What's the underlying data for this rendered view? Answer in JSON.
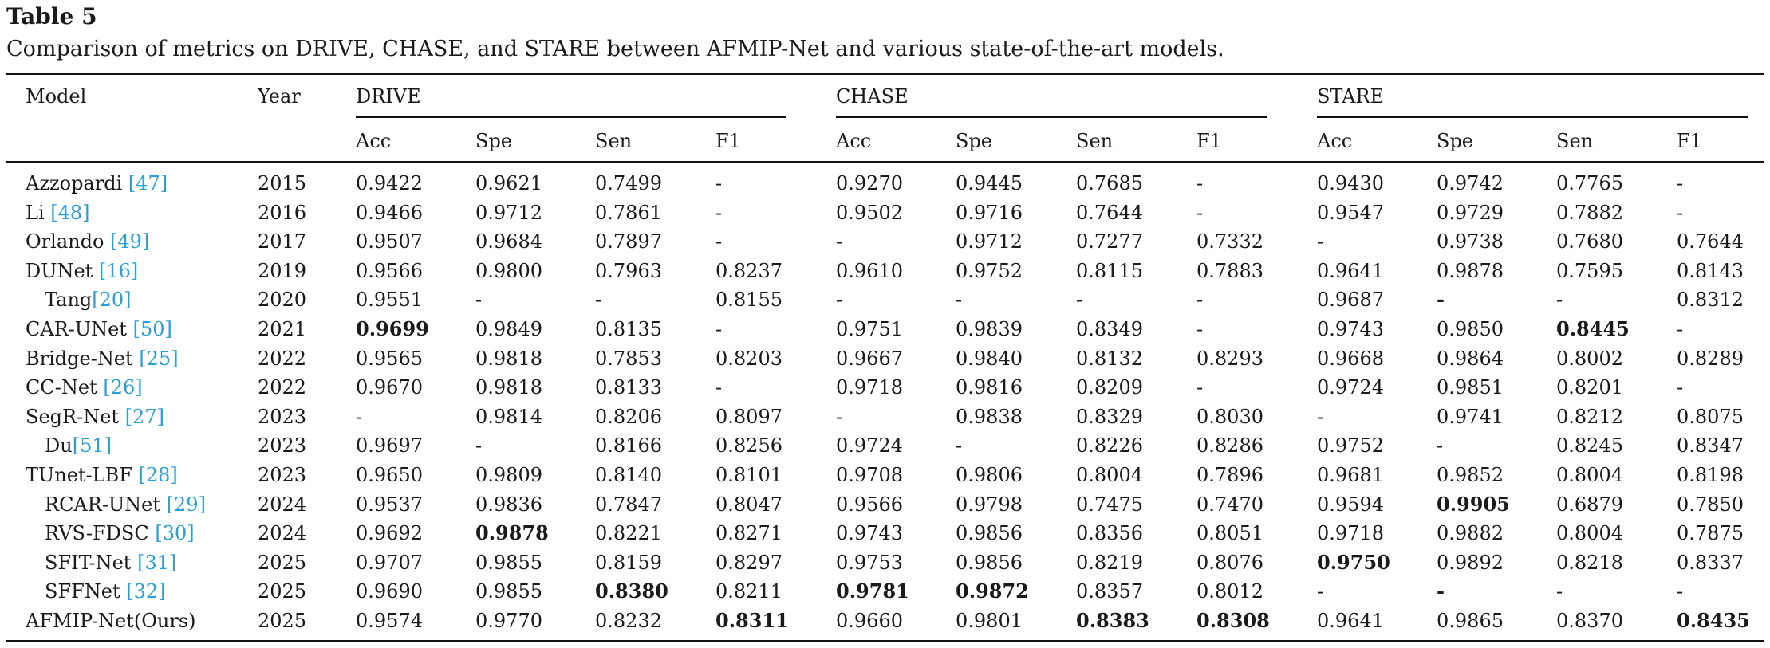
{
  "caption": {
    "label": "Table 5",
    "text": "Comparison of metrics on DRIVE, CHASE, and STARE between AFMIP-Net and various state-of-the-art models."
  },
  "colors": {
    "reference": "#2a9fd6",
    "text": "#1a1a1a"
  },
  "header": {
    "model": "Model",
    "year": "Year",
    "groups": [
      "DRIVE",
      "CHASE",
      "STARE"
    ],
    "metrics": [
      "Acc",
      "Spe",
      "Sen",
      "F1"
    ]
  },
  "rows": [
    {
      "name": "Azzopardi",
      "ref": "[47]",
      "year": "2015",
      "values": [
        "0.9422",
        "0.9621",
        "0.7499",
        "-",
        "0.9270",
        "0.9445",
        "0.7685",
        "-",
        "0.9430",
        "0.9742",
        "0.7765",
        "-"
      ],
      "bold": []
    },
    {
      "name": "Li",
      "ref": "[48]",
      "year": "2016",
      "values": [
        "0.9466",
        "0.9712",
        "0.7861",
        "-",
        "0.9502",
        "0.9716",
        "0.7644",
        "-",
        "0.9547",
        "0.9729",
        "0.7882",
        "-"
      ],
      "bold": []
    },
    {
      "name": "Orlando",
      "ref": "[49]",
      "year": "2017",
      "values": [
        "0.9507",
        "0.9684",
        "0.7897",
        "-",
        "-",
        "0.9712",
        "0.7277",
        "0.7332",
        "-",
        "0.9738",
        "0.7680",
        "0.7644"
      ],
      "bold": []
    },
    {
      "name": "DUNet",
      "ref": "[16]",
      "year": "2019",
      "values": [
        "0.9566",
        "0.9800",
        "0.7963",
        "0.8237",
        "0.9610",
        "0.9752",
        "0.8115",
        "0.7883",
        "0.9641",
        "0.9878",
        "0.7595",
        "0.8143"
      ],
      "bold": []
    },
    {
      "name": "Tang",
      "ref": "[20]",
      "year": "2020",
      "indent": true,
      "nospace": true,
      "values": [
        "0.9551",
        "-",
        "-",
        "0.8155",
        "-",
        "-",
        "-",
        "-",
        "0.9687",
        "-",
        "-",
        "0.8312"
      ],
      "bold": [
        9
      ]
    },
    {
      "name": "CAR-UNet",
      "ref": "[50]",
      "year": "2021",
      "values": [
        "0.9699",
        "0.9849",
        "0.8135",
        "-",
        "0.9751",
        "0.9839",
        "0.8349",
        "-",
        "0.9743",
        "0.9850",
        "0.8445",
        "-"
      ],
      "bold": [
        0,
        10
      ]
    },
    {
      "name": "Bridge-Net",
      "ref": "[25]",
      "year": "2022",
      "values": [
        "0.9565",
        "0.9818",
        "0.7853",
        "0.8203",
        "0.9667",
        "0.9840",
        "0.8132",
        "0.8293",
        "0.9668",
        "0.9864",
        "0.8002",
        "0.8289"
      ],
      "bold": []
    },
    {
      "name": "CC-Net",
      "ref": "[26]",
      "year": "2022",
      "values": [
        "0.9670",
        "0.9818",
        "0.8133",
        "-",
        "0.9718",
        "0.9816",
        "0.8209",
        "-",
        "0.9724",
        "0.9851",
        "0.8201",
        "-"
      ],
      "bold": []
    },
    {
      "name": "SegR-Net",
      "ref": "[27]",
      "year": "2023",
      "values": [
        "-",
        "0.9814",
        "0.8206",
        "0.8097",
        "-",
        "0.9838",
        "0.8329",
        "0.8030",
        "-",
        "0.9741",
        "0.8212",
        "0.8075"
      ],
      "bold": []
    },
    {
      "name": "Du",
      "ref": "[51]",
      "year": "2023",
      "indent": true,
      "nospace": true,
      "values": [
        "0.9697",
        "-",
        "0.8166",
        "0.8256",
        "0.9724",
        "-",
        "0.8226",
        "0.8286",
        "0.9752",
        "-",
        "0.8245",
        "0.8347"
      ],
      "bold": []
    },
    {
      "name": "TUnet-LBF",
      "ref": "[28]",
      "year": "2023",
      "values": [
        "0.9650",
        "0.9809",
        "0.8140",
        "0.8101",
        "0.9708",
        "0.9806",
        "0.8004",
        "0.7896",
        "0.9681",
        "0.9852",
        "0.8004",
        "0.8198"
      ],
      "bold": []
    },
    {
      "name": "RCAR-UNet",
      "ref": "[29]",
      "year": "2024",
      "indent": true,
      "values": [
        "0.9537",
        "0.9836",
        "0.7847",
        "0.8047",
        "0.9566",
        "0.9798",
        "0.7475",
        "0.7470",
        "0.9594",
        "0.9905",
        "0.6879",
        "0.7850"
      ],
      "bold": [
        9
      ]
    },
    {
      "name": "RVS-FDSC",
      "ref": "[30]",
      "year": "2024",
      "indent": true,
      "values": [
        "0.9692",
        "0.9878",
        "0.8221",
        "0.8271",
        "0.9743",
        "0.9856",
        "0.8356",
        "0.8051",
        "0.9718",
        "0.9882",
        "0.8004",
        "0.7875"
      ],
      "bold": [
        1
      ]
    },
    {
      "name": "SFIT-Net",
      "ref": "[31]",
      "year": "2025",
      "indent": true,
      "values": [
        "0.9707",
        "0.9855",
        "0.8159",
        "0.8297",
        "0.9753",
        "0.9856",
        "0.8219",
        "0.8076",
        "0.9750",
        "0.9892",
        "0.8218",
        "0.8337"
      ],
      "bold": [
        8
      ]
    },
    {
      "name": "SFFNet",
      "ref": "[32]",
      "year": "2025",
      "indent": true,
      "values": [
        "0.9690",
        "0.9855",
        "0.8380",
        "0.8211",
        "0.9781",
        "0.9872",
        "0.8357",
        "0.8012",
        "-",
        "-",
        "-",
        "-"
      ],
      "bold": [
        2,
        4,
        5,
        9
      ]
    },
    {
      "name": "AFMIP-Net(Ours)",
      "ref": "",
      "year": "2025",
      "values": [
        "0.9574",
        "0.9770",
        "0.8232",
        "0.8311",
        "0.9660",
        "0.9801",
        "0.8383",
        "0.8308",
        "0.9641",
        "0.9865",
        "0.8370",
        "0.8435"
      ],
      "bold": [
        3,
        6,
        7,
        11
      ]
    }
  ]
}
